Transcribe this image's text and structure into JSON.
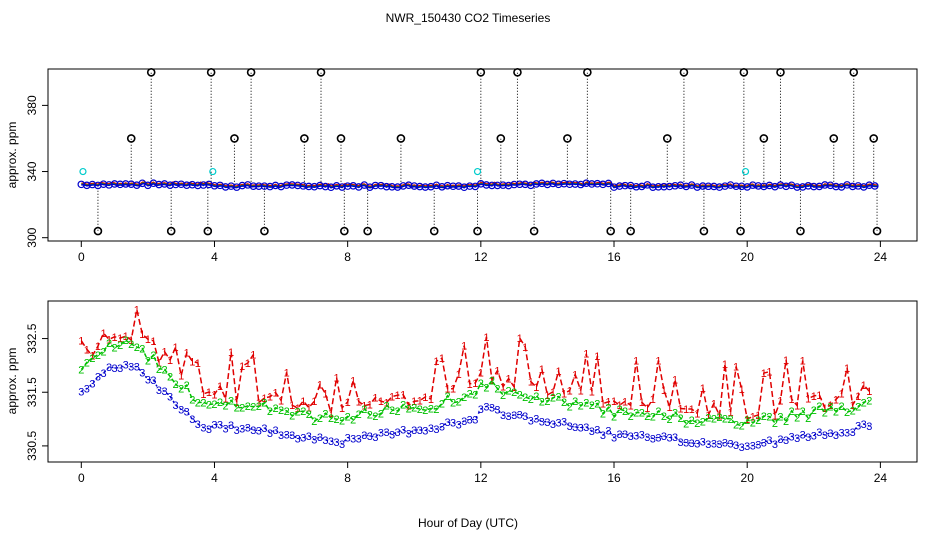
{
  "title": "NWR_150430  CO2 Timeseries",
  "xlabel": "Hour of Day (UTC)",
  "colors": {
    "axis": "#000000",
    "series1": "#e00000",
    "series2": "#00c000",
    "series3": "#0000cc",
    "flagged": "#000000",
    "cyan": "#00cccc"
  },
  "chart_data": [
    {
      "type": "scatter",
      "name": "top",
      "ylabel": "approx. ppm",
      "xlim": [
        -1,
        25.1
      ],
      "ylim": [
        298,
        402
      ],
      "xticks": [
        0,
        4,
        8,
        12,
        16,
        20,
        24
      ],
      "yticks": [
        300,
        340,
        380
      ],
      "series": [
        {
          "name": "main",
          "x": [],
          "y": []
        },
        {
          "name": "flagged",
          "x": [],
          "y": []
        },
        {
          "name": "cyan",
          "x": [
            0.05,
            3.95,
            11.9,
            19.95
          ],
          "y": [
            340,
            340,
            340,
            340
          ]
        }
      ]
    },
    {
      "type": "line",
      "name": "bottom",
      "ylabel": "approx. ppm",
      "xlim": [
        -1,
        25.1
      ],
      "ylim": [
        330.2,
        333.2
      ],
      "xticks": [
        0,
        4,
        8,
        12,
        16,
        20,
        24
      ],
      "yticks": [
        330.5,
        331.5,
        332.5
      ],
      "series": [
        {
          "name": "1",
          "x": [],
          "y": []
        },
        {
          "name": "2",
          "x": [],
          "y": []
        },
        {
          "name": "3",
          "x": [],
          "y": []
        }
      ]
    }
  ]
}
